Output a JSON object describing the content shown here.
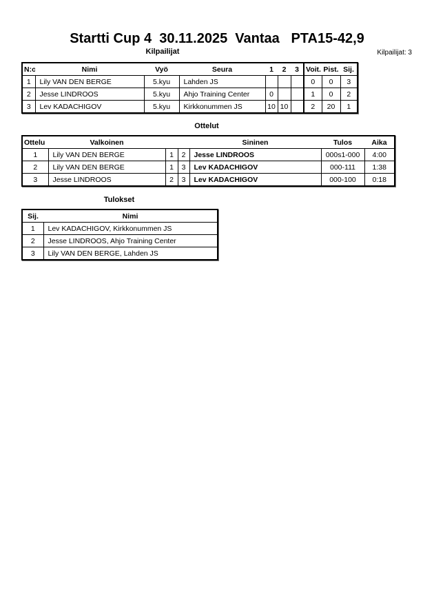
{
  "title": "Startti Cup 4  30.11.2025  Vantaa   PTA15-42,9",
  "competitors": {
    "heading": "Kilpailijat",
    "count_label": "Kilpailijat: 3",
    "columns": [
      "N:o",
      "Nimi",
      "Vyö",
      "Seura",
      "1",
      "2",
      "3",
      "Voit.",
      "Pist.",
      "Sij."
    ],
    "rows": [
      [
        "1",
        "Lily VAN DEN BERGE",
        "5.kyu",
        "Lahden JS",
        "",
        "",
        "",
        "0",
        "0",
        "3"
      ],
      [
        "2",
        "Jesse LINDROOS",
        "5.kyu",
        "Ahjo Training Center",
        "0",
        "",
        "",
        "1",
        "0",
        "2"
      ],
      [
        "3",
        "Lev KADACHIGOV",
        "5.kyu",
        "Kirkkonummen JS",
        "10",
        "10",
        "",
        "2",
        "20",
        "1"
      ]
    ]
  },
  "matches": {
    "heading": "Ottelut",
    "columns": [
      "Ottelu",
      "Valkoinen",
      "",
      "",
      "Sininen",
      "Tulos",
      "Aika"
    ],
    "rows": [
      [
        "1",
        "Lily VAN DEN BERGE",
        "1",
        "2",
        "Jesse LINDROOS",
        "000s1-000",
        "4:00"
      ],
      [
        "2",
        "Lily VAN DEN BERGE",
        "1",
        "3",
        "Lev KADACHIGOV",
        "000-111",
        "1:38"
      ],
      [
        "3",
        "Jesse LINDROOS",
        "2",
        "3",
        "Lev KADACHIGOV",
        "000-100",
        "0:18"
      ]
    ]
  },
  "results": {
    "heading": "Tulokset",
    "columns": [
      "Sij.",
      "Nimi"
    ],
    "rows": [
      [
        "1",
        "Lev KADACHIGOV, Kirkkonummen JS"
      ],
      [
        "2",
        "Jesse LINDROOS, Ahjo Training Center"
      ],
      [
        "3",
        "Lily VAN DEN BERGE, Lahden JS"
      ]
    ]
  }
}
